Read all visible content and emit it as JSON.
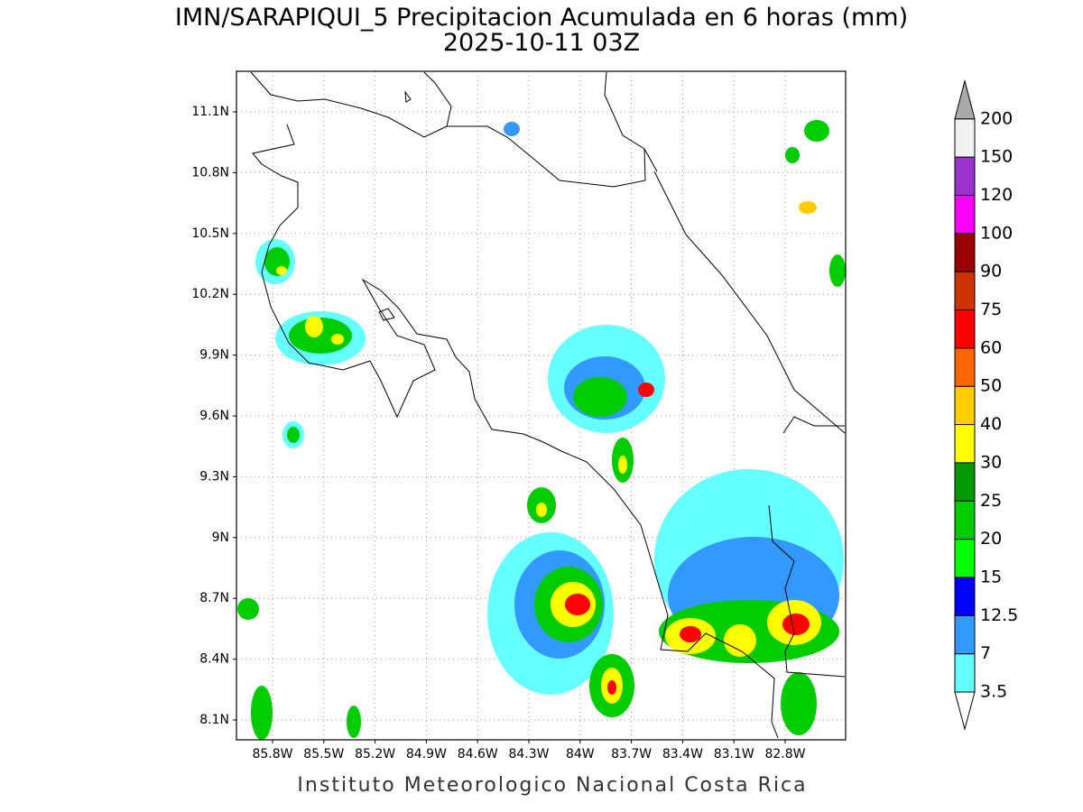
{
  "header": {
    "title": "IMN/SARAPIQUI_5 Precipitacion Acumulada en 6 horas (mm)",
    "subtitle": "2025-10-11 03Z"
  },
  "map": {
    "lat_labels": [
      "11.1N",
      "10.8N",
      "10.5N",
      "10.2N",
      "9.9N",
      "9.6N",
      "9.3N",
      "9N",
      "8.7N",
      "8.4N",
      "8.1N"
    ],
    "lon_labels": [
      "85.8W",
      "85.5W",
      "85.2W",
      "84.9W",
      "84.6W",
      "84.3W",
      "84W",
      "83.7W",
      "83.4W",
      "83.1W",
      "82.8W"
    ],
    "grid": true
  },
  "colorbar": {
    "labels": [
      "3.5",
      "7",
      "12.5",
      "15",
      "20",
      "25",
      "30",
      "40",
      "50",
      "60",
      "75",
      "90",
      "100",
      "120",
      "150",
      "200"
    ],
    "colors": [
      "#66ffff",
      "#3399ff",
      "#0000ff",
      "#00ff00",
      "#00cc00",
      "#009900",
      "#ffff00",
      "#ffcc00",
      "#ff6600",
      "#ff0000",
      "#cc3300",
      "#990000",
      "#ff00ff",
      "#9933cc",
      "#f2f2f2"
    ],
    "under_color": "#ffffff",
    "over_color": "#aaaaaa"
  },
  "footer": "Instituto Meteorologico Nacional Costa Rica"
}
